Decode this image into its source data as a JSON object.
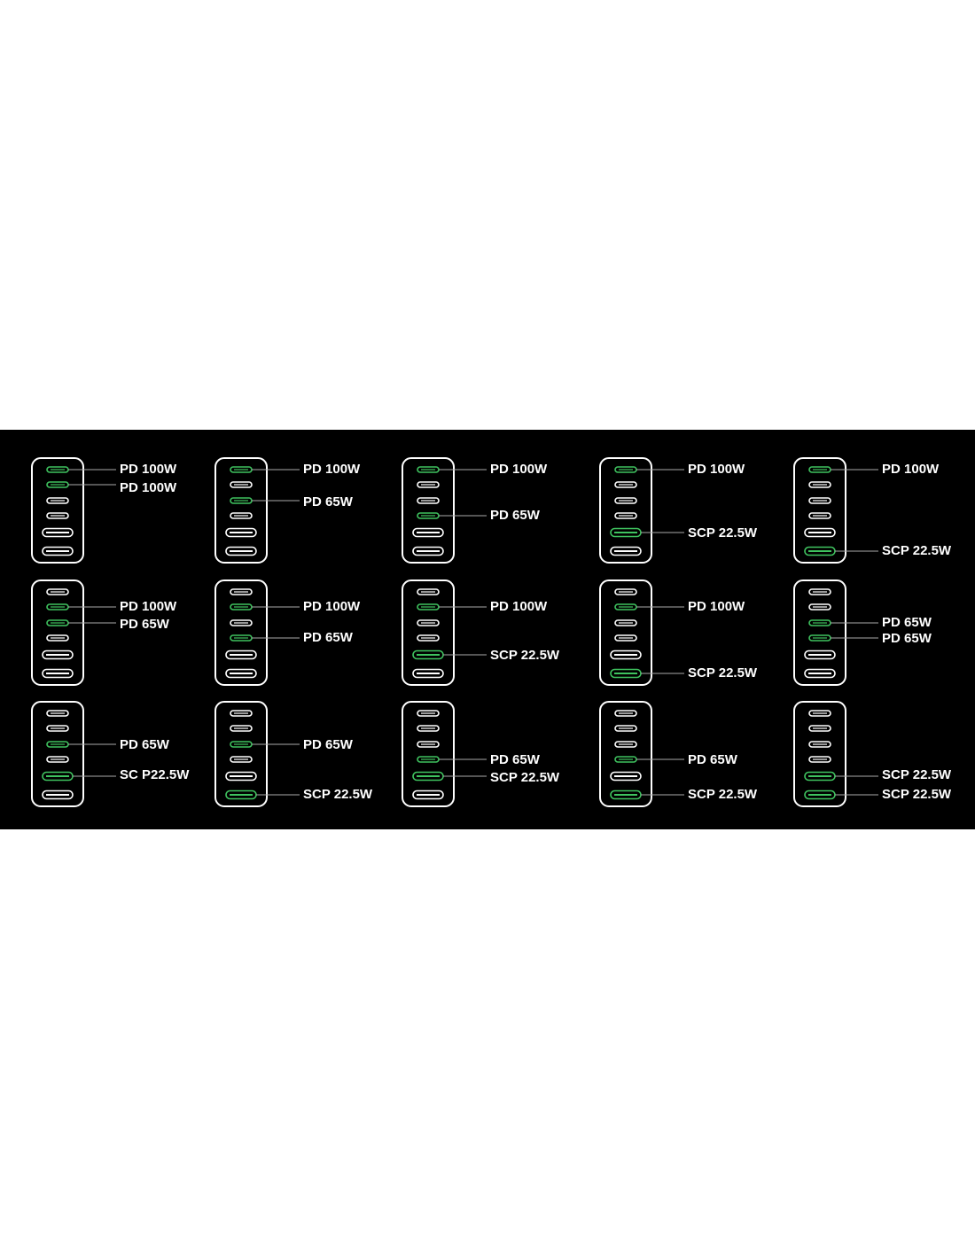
{
  "grid": {
    "rows": [
      [
        {
          "labels": [
            "PD 100W",
            "PD 100W"
          ]
        },
        {
          "labels": [
            "PD 100W",
            "PD 65W"
          ]
        },
        {
          "labels": [
            "PD 100W",
            "PD 65W"
          ]
        },
        {
          "labels": [
            "PD 100W",
            "SCP 22.5W"
          ]
        },
        {
          "labels": [
            "PD 100W",
            "SCP 22.5W"
          ]
        }
      ],
      [
        {
          "labels": [
            "PD 100W",
            "PD 65W"
          ]
        },
        {
          "labels": [
            "PD 100W",
            "PD 65W"
          ]
        },
        {
          "labels": [
            "PD 100W",
            "SCP 22.5W"
          ]
        },
        {
          "labels": [
            "PD 100W",
            "SCP 22.5W"
          ]
        },
        {
          "labels": [
            "PD 65W",
            "PD 65W"
          ]
        }
      ],
      [
        {
          "labels": [
            "PD 65W",
            "SC P22.5W"
          ]
        },
        {
          "labels": [
            "PD 65W",
            "SCP 22.5W"
          ]
        },
        {
          "labels": [
            "PD 65W",
            "SCP 22.5W"
          ]
        },
        {
          "labels": [
            "PD 65W",
            "SCP 22.5W"
          ]
        },
        {
          "labels": [
            "SCP 22.5W",
            "SCP 22.5W"
          ]
        }
      ]
    ]
  }
}
